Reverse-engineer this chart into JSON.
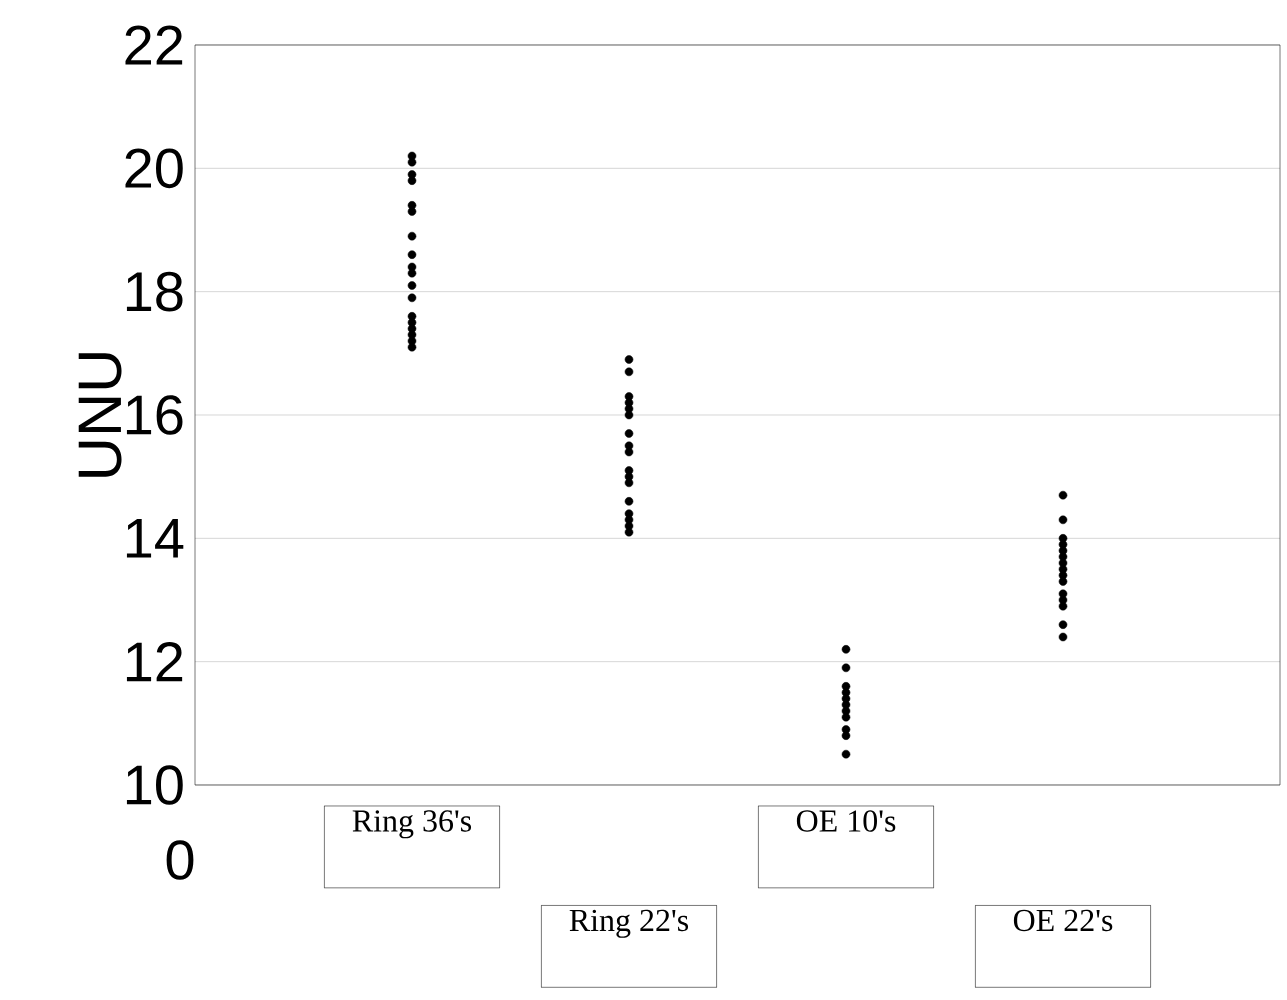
{
  "chart_data": {
    "type": "scatter",
    "ylabel": "UNU",
    "annotations": [
      "0"
    ],
    "categories": [
      "Ring 36's",
      "Ring 22's",
      "OE 10's",
      "OE 22's"
    ],
    "ylim": [
      10,
      22
    ],
    "yticks": [
      10,
      12,
      14,
      16,
      18,
      20,
      22
    ],
    "grid": "y",
    "marker": "circle",
    "series": [
      {
        "color": "#000000",
        "values": [
          20.2,
          16.9,
          12.2,
          14.7
        ]
      },
      {
        "color": "#000000",
        "values": [
          20.1,
          16.7,
          11.9,
          14.3
        ]
      },
      {
        "color": "#000000",
        "values": [
          19.9,
          16.3,
          11.6,
          14.0
        ]
      },
      {
        "color": "#000000",
        "values": [
          19.8,
          16.2,
          11.5,
          13.9
        ]
      },
      {
        "color": "#000000",
        "values": [
          19.4,
          16.1,
          11.4,
          13.8
        ]
      },
      {
        "color": "#000000",
        "values": [
          19.3,
          16.0,
          11.3,
          13.7
        ]
      },
      {
        "color": "#000000",
        "values": [
          18.9,
          15.7,
          11.2,
          13.6
        ]
      },
      {
        "color": "#000000",
        "values": [
          18.6,
          15.5,
          11.1,
          13.5
        ]
      },
      {
        "color": "#000000",
        "values": [
          18.4,
          15.4,
          10.9,
          13.4
        ]
      },
      {
        "color": "#000000",
        "values": [
          18.3,
          15.1,
          10.8,
          13.3
        ]
      },
      {
        "color": "#000000",
        "values": [
          18.1,
          15.0,
          10.5,
          13.1
        ]
      },
      {
        "color": "#000000",
        "values": [
          17.9,
          14.9,
          null,
          13.0
        ]
      },
      {
        "color": "#000000",
        "values": [
          17.6,
          14.6,
          null,
          12.9
        ]
      },
      {
        "color": "#000000",
        "values": [
          17.5,
          14.4,
          null,
          12.6
        ]
      },
      {
        "color": "#000000",
        "values": [
          17.4,
          14.3,
          null,
          12.4
        ]
      },
      {
        "color": "#000000",
        "values": [
          17.3,
          14.2,
          null,
          null
        ]
      },
      {
        "color": "#000000",
        "values": [
          17.2,
          14.1,
          null,
          null
        ]
      },
      {
        "color": "#000000",
        "values": [
          17.1,
          null,
          null,
          null
        ]
      }
    ]
  }
}
